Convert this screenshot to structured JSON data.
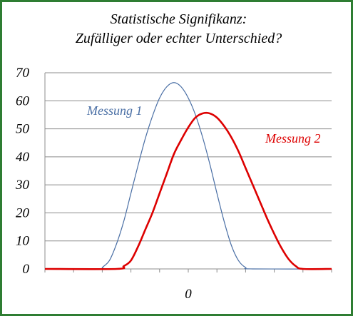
{
  "chart_data": {
    "type": "line",
    "title_lines": [
      "Statistische Signifikanz:",
      "Zufälliger oder echter Unterschied?"
    ],
    "ylim": [
      0,
      70
    ],
    "yticks": [
      0,
      10,
      20,
      30,
      40,
      50,
      60,
      70
    ],
    "xtick_label": "0",
    "grid": true,
    "series": [
      {
        "name": "Messung 1",
        "color": "#4a6fa5",
        "points": [
          [
            -5,
            0
          ],
          [
            -3,
            0
          ],
          [
            -3,
            0.5
          ],
          [
            -2.75,
            3
          ],
          [
            -2.5,
            9
          ],
          [
            -2.25,
            17
          ],
          [
            -2,
            27
          ],
          [
            -1.75,
            37
          ],
          [
            -1.5,
            46.5
          ],
          [
            -1.25,
            54.5
          ],
          [
            -1,
            61
          ],
          [
            -0.75,
            65
          ],
          [
            -0.5,
            66.5
          ],
          [
            -0.25,
            65
          ],
          [
            0,
            61
          ],
          [
            0.25,
            55
          ],
          [
            0.5,
            47
          ],
          [
            0.75,
            37.5
          ],
          [
            1,
            27
          ],
          [
            1.25,
            17
          ],
          [
            1.5,
            8.5
          ],
          [
            1.75,
            3
          ],
          [
            2,
            0.5
          ],
          [
            2.25,
            0
          ],
          [
            5,
            0
          ]
        ]
      },
      {
        "name": "Messung 2",
        "color": "#dd0000",
        "points": [
          [
            -5,
            0
          ],
          [
            -2.5,
            0
          ],
          [
            -2.25,
            1
          ],
          [
            -2,
            3
          ],
          [
            -1.75,
            8
          ],
          [
            -1.5,
            14
          ],
          [
            -1.25,
            20
          ],
          [
            -1,
            27
          ],
          [
            -0.75,
            34
          ],
          [
            -0.5,
            41
          ],
          [
            -0.25,
            46
          ],
          [
            0,
            50.5
          ],
          [
            0.25,
            54
          ],
          [
            0.5,
            55.5
          ],
          [
            0.75,
            55.5
          ],
          [
            1,
            54
          ],
          [
            1.25,
            51
          ],
          [
            1.5,
            47
          ],
          [
            1.75,
            42
          ],
          [
            2,
            36
          ],
          [
            2.25,
            30
          ],
          [
            2.5,
            24
          ],
          [
            2.75,
            18
          ],
          [
            3,
            12.5
          ],
          [
            3.25,
            7.5
          ],
          [
            3.5,
            3.5
          ],
          [
            3.75,
            1
          ],
          [
            4,
            0
          ],
          [
            5,
            0
          ]
        ]
      }
    ],
    "xlim": [
      -5,
      5
    ]
  }
}
